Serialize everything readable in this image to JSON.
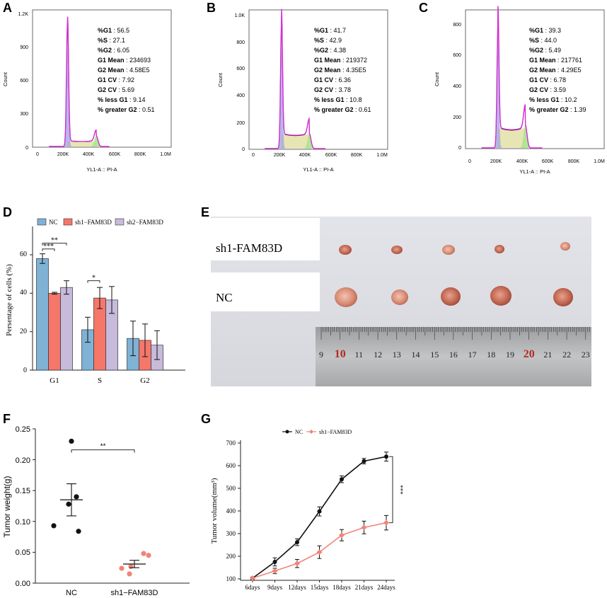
{
  "panel_letters": [
    "A",
    "B",
    "C",
    "D",
    "E",
    "F",
    "G"
  ],
  "colors": {
    "nc_blue": "#7fb2d5",
    "sh1_red": "#f4776a",
    "sh2_purple": "#c7badb",
    "hist_magenta": "#d62ed2",
    "g1_fill": "#9da2e2",
    "s_fill": "#e3e1a6",
    "g2_fill": "#a8e48d",
    "nc_black": "#111111",
    "sh1_salmon": "#f08478"
  },
  "chart_data": [
    {
      "id": "A",
      "type": "area",
      "subtype": "flow-cytometry-histogram",
      "xlabel": "YL1-A :: PI-A",
      "ylabel": "Count",
      "xticks": [
        "0",
        "200K",
        "400K",
        "600K",
        "800K",
        "1.0M"
      ],
      "yticks": [
        "0",
        "300",
        "600",
        "900",
        "1.2K"
      ],
      "xlim": [
        0,
        1000000
      ],
      "ylim": [
        0,
        1200
      ],
      "g1_peak": {
        "x": 234693,
        "count": 1130
      },
      "g2_peak": {
        "x": 458000,
        "count": 95
      },
      "s_plateau": 50,
      "stats": [
        {
          "label": "%G1",
          "value": "56.5"
        },
        {
          "label": "%S",
          "value": "27.1"
        },
        {
          "label": "%G2",
          "value": "6.05"
        },
        {
          "label": "G1 Mean",
          "value": "234693"
        },
        {
          "label": "G2 Mean",
          "value": "4.58E5"
        },
        {
          "label": "G1 CV",
          "value": "7.92"
        },
        {
          "label": "G2 CV",
          "value": "5.69"
        },
        {
          "label": "% less G1",
          "value": "9.14"
        },
        {
          "label": "% greater G2",
          "value": "0.51"
        }
      ]
    },
    {
      "id": "B",
      "type": "area",
      "subtype": "flow-cytometry-histogram",
      "xlabel": "YL1-A :: PI-A",
      "ylabel": "Count",
      "xticks": [
        "0",
        "200K",
        "400K",
        "600K",
        "800K",
        "1.0M"
      ],
      "yticks": [
        "0",
        "200",
        "400",
        "600",
        "800",
        "1.0K"
      ],
      "xlim": [
        0,
        1000000
      ],
      "ylim": [
        0,
        1000
      ],
      "g1_peak": {
        "x": 219372,
        "count": 960
      },
      "g2_peak": {
        "x": 435000,
        "count": 110
      },
      "s_plateau": 110,
      "stats": [
        {
          "label": "%G1",
          "value": "41.7"
        },
        {
          "label": "%S",
          "value": "42.9"
        },
        {
          "label": "%G2",
          "value": "4.38"
        },
        {
          "label": "G1 Mean",
          "value": "219372"
        },
        {
          "label": "G2 Mean",
          "value": "4.35E5"
        },
        {
          "label": "G1 CV",
          "value": "6.36"
        },
        {
          "label": "G2 CV",
          "value": "3.78"
        },
        {
          "label": "% less G1",
          "value": "10.8"
        },
        {
          "label": "% greater G2",
          "value": "0.61"
        }
      ]
    },
    {
      "id": "C",
      "type": "area",
      "subtype": "flow-cytometry-histogram",
      "xlabel": "YL1-A :: PI-A",
      "ylabel": "Count",
      "xticks": [
        "0",
        "200K",
        "400K",
        "600K",
        "800K",
        "1.0M"
      ],
      "yticks": [
        "0",
        "200",
        "400",
        "600",
        "800"
      ],
      "xlim": [
        0,
        1000000
      ],
      "ylim": [
        0,
        860
      ],
      "g1_peak": {
        "x": 217761,
        "count": 820
      },
      "g2_peak": {
        "x": 429000,
        "count": 145
      },
      "s_plateau": 130,
      "stats": [
        {
          "label": "%G1",
          "value": "39.3"
        },
        {
          "label": "%S",
          "value": "44.0"
        },
        {
          "label": "%G2",
          "value": "5.49"
        },
        {
          "label": "G1 Mean",
          "value": "217761"
        },
        {
          "label": "G2 Mean",
          "value": "4.29E5"
        },
        {
          "label": "G1 CV",
          "value": "6.78"
        },
        {
          "label": "G2 CV",
          "value": "3.59"
        },
        {
          "label": "% less G1",
          "value": "10.2"
        },
        {
          "label": "% greater G2",
          "value": "1.39"
        }
      ]
    },
    {
      "id": "D",
      "type": "bar",
      "ylabel": "Persentage of cells (%)",
      "categories": [
        "G1",
        "S",
        "G2"
      ],
      "yticks": [
        "0",
        "20",
        "40",
        "60"
      ],
      "ylim": [
        0,
        70
      ],
      "series": [
        {
          "name": "NC",
          "values": [
            58,
            21,
            16.5
          ],
          "errors": [
            2.5,
            6.5,
            9
          ]
        },
        {
          "name": "sh1−FAM83D",
          "values": [
            40,
            37.5,
            15.5
          ],
          "errors": [
            0.5,
            5.5,
            8.5
          ]
        },
        {
          "name": "sh2−FAM83D",
          "values": [
            43,
            36.5,
            13
          ],
          "errors": [
            3.5,
            7,
            7.5
          ]
        }
      ],
      "significance": [
        {
          "label": "***",
          "category": 0,
          "from": 0,
          "to": 1,
          "y": 63
        },
        {
          "label": "**",
          "category": 0,
          "from": 0,
          "to": 2,
          "y": 66
        },
        {
          "label": "*",
          "category": 1,
          "from": 0,
          "to": 1,
          "y": 46.5
        }
      ]
    },
    {
      "id": "F",
      "type": "scatter",
      "ylabel": "Tumor weight(g)",
      "categories": [
        "NC",
        "sh1−FAM83D"
      ],
      "yticks": [
        "0.00",
        "0.05",
        "0.10",
        "0.15",
        "0.20",
        "0.25"
      ],
      "ylim": [
        0,
        0.25
      ],
      "groups": [
        {
          "name": "NC",
          "points": [
            0.23,
            0.14,
            0.128,
            0.093,
            0.084
          ],
          "mean": 0.135,
          "sem": 0.026
        },
        {
          "name": "sh1−FAM83D",
          "points": [
            0.048,
            0.045,
            0.027,
            0.024,
            0.015
          ],
          "mean": 0.031,
          "sem": 0.006
        }
      ],
      "significance": {
        "label": "**",
        "y": 0.216
      }
    },
    {
      "id": "G",
      "type": "line",
      "ylabel": "Tumor volume(mm³)",
      "categories": [
        "6days",
        "9days",
        "12days",
        "15days",
        "18days",
        "21days",
        "24days"
      ],
      "yticks": [
        "100",
        "200",
        "300",
        "400",
        "500",
        "600",
        "700"
      ],
      "ylim": [
        100,
        700
      ],
      "series": [
        {
          "name": "NC",
          "values": [
            103,
            175,
            262,
            398,
            540,
            620,
            640
          ],
          "errors": [
            5,
            18,
            15,
            20,
            15,
            12,
            20
          ]
        },
        {
          "name": "sh1−FAM83D",
          "values": [
            103,
            135,
            168,
            218,
            293,
            327,
            348
          ],
          "errors": [
            5,
            12,
            18,
            28,
            25,
            28,
            32
          ]
        }
      ],
      "significance": {
        "label": "***"
      }
    }
  ],
  "photo_E": {
    "row_labels": [
      "sh1-FAM83D",
      "NC"
    ],
    "ruler_numbers": [
      "9",
      "10",
      "11",
      "12",
      "13",
      "14",
      "15",
      "16",
      "17",
      "18",
      "19",
      "20",
      "21",
      "22",
      "23"
    ]
  }
}
